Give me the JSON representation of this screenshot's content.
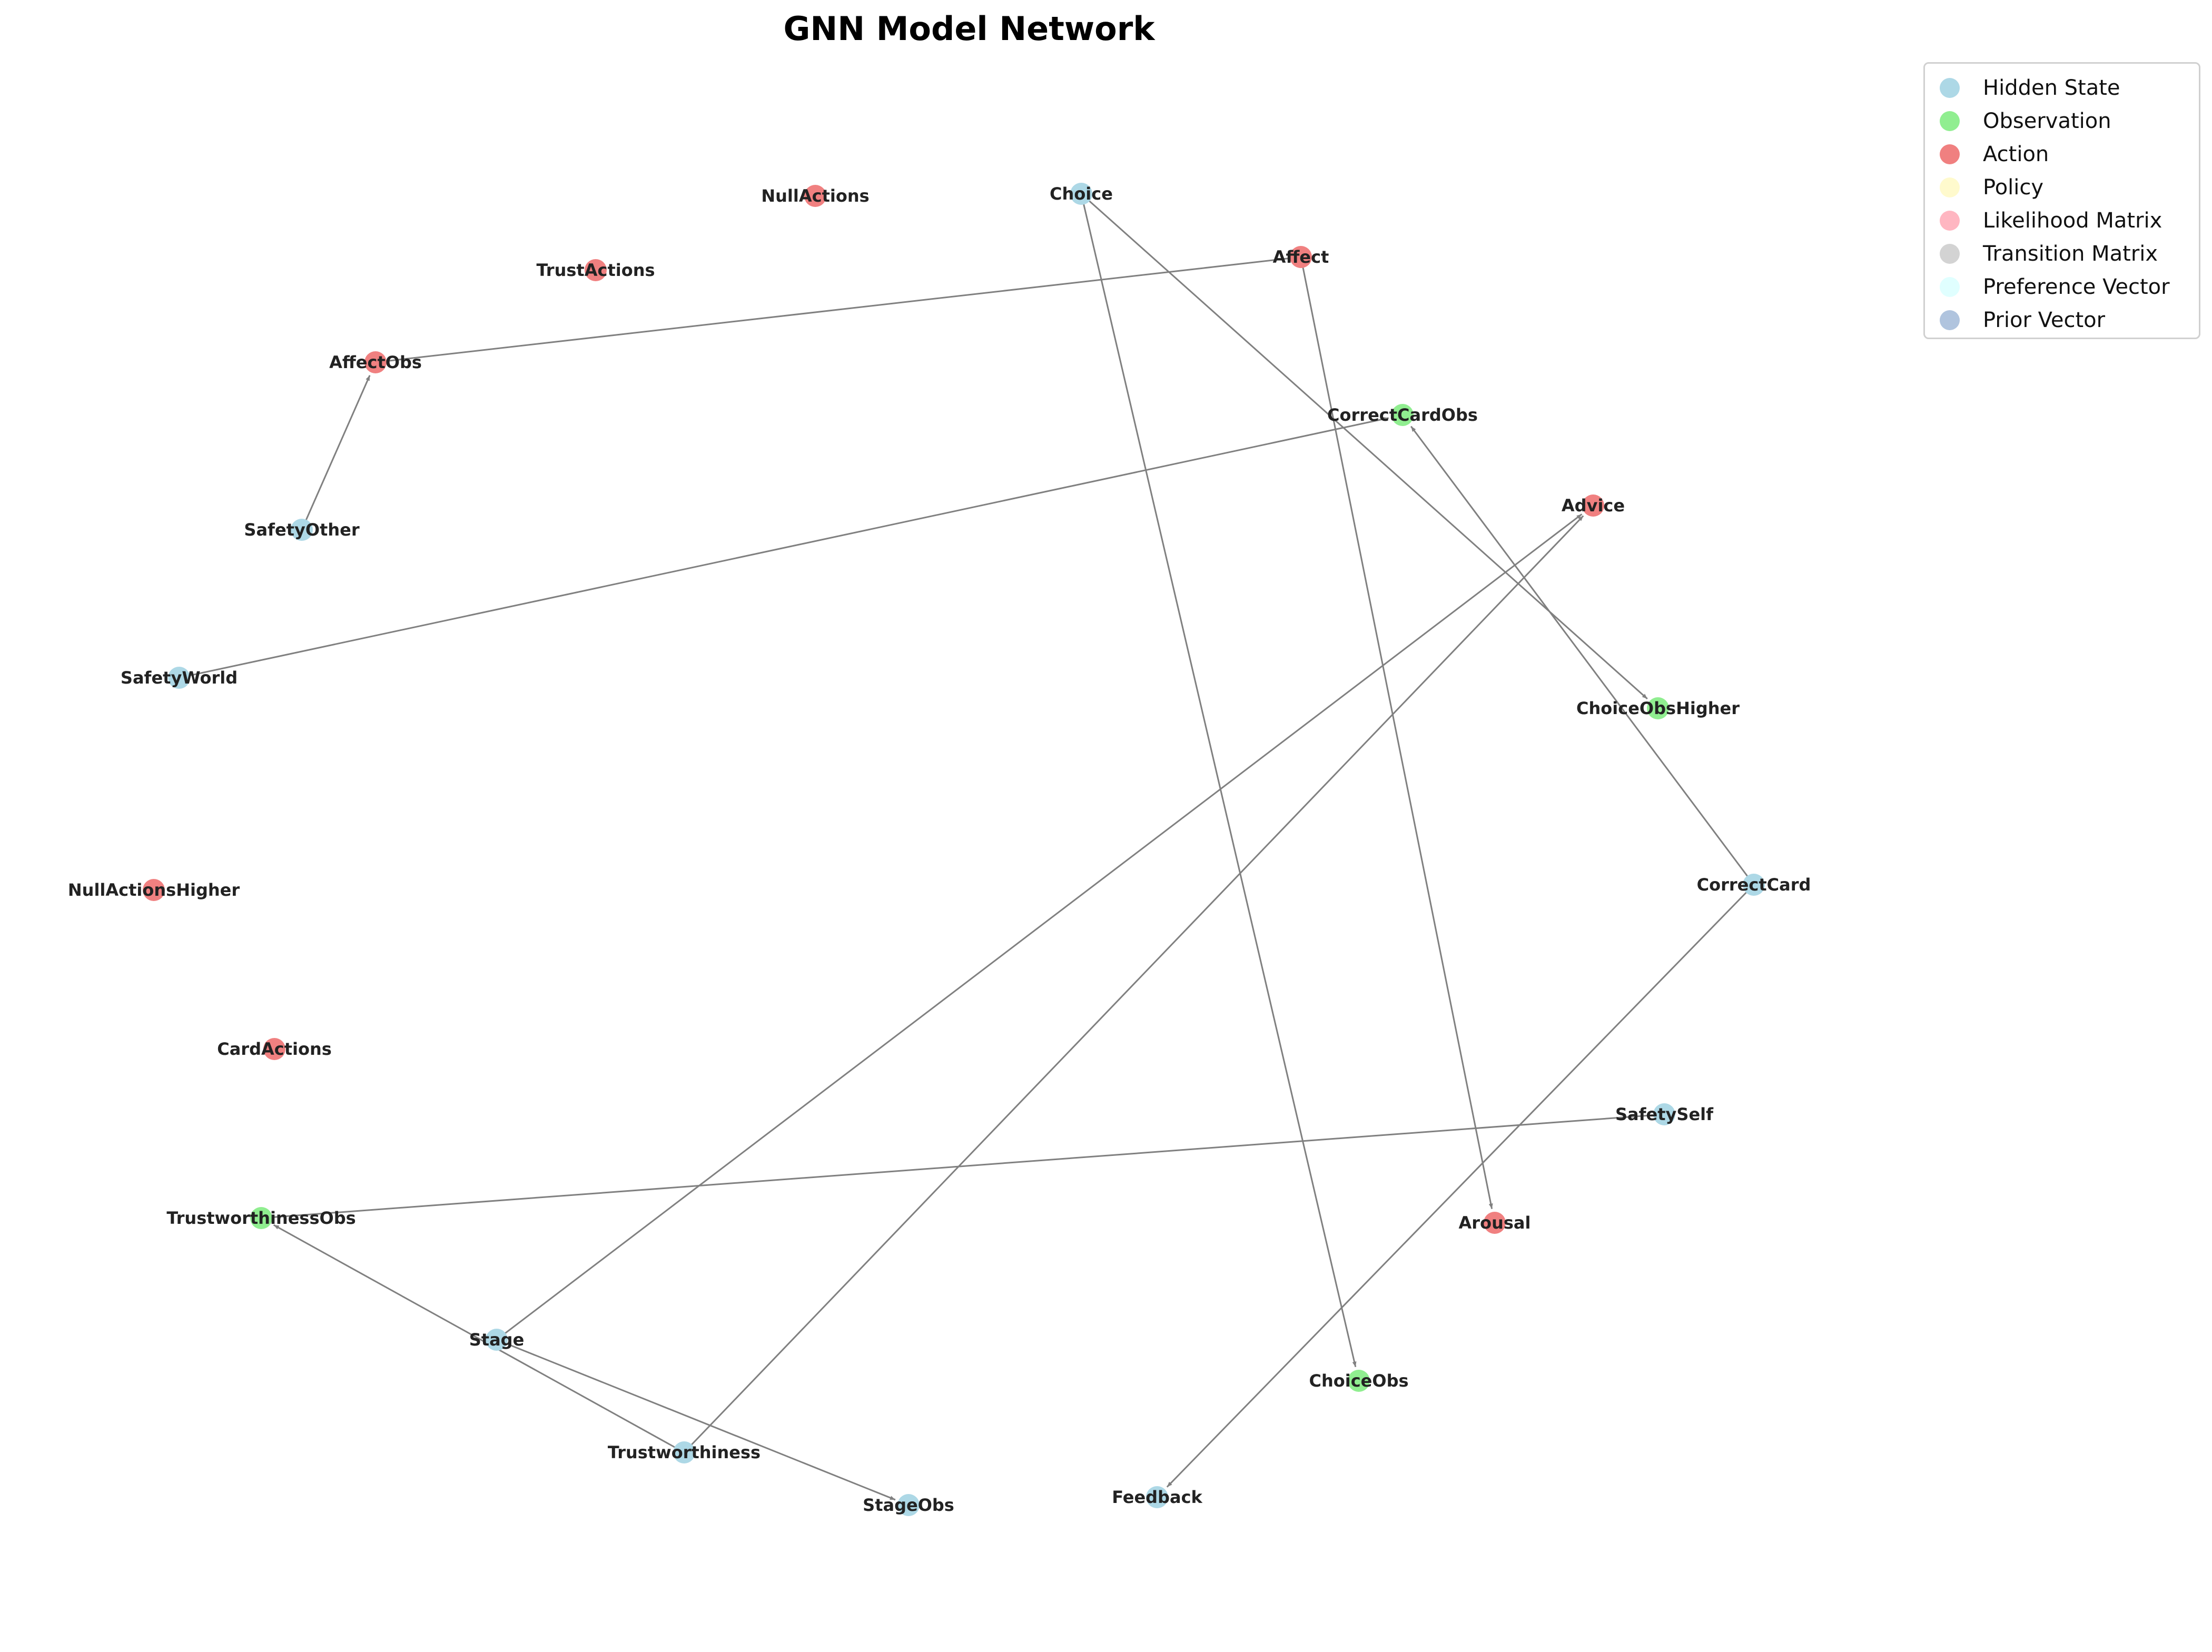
{
  "title": "GNN Model Network",
  "legend": [
    {
      "label": "Hidden State",
      "color": "#add8e6"
    },
    {
      "label": "Observation",
      "color": "#90ee90"
    },
    {
      "label": "Action",
      "color": "#f08080"
    },
    {
      "label": "Policy",
      "color": "#fffacd"
    },
    {
      "label": "Likelihood Matrix",
      "color": "#ffb6c1"
    },
    {
      "label": "Transition Matrix",
      "color": "#d3d3d3"
    },
    {
      "label": "Preference Vector",
      "color": "#e0ffff"
    },
    {
      "label": "Prior Vector",
      "color": "#b0c4de"
    }
  ],
  "nodes": [
    {
      "id": "NullActions",
      "type": "Action"
    },
    {
      "id": "Choice",
      "type": "Hidden State"
    },
    {
      "id": "TrustActions",
      "type": "Action"
    },
    {
      "id": "Affect",
      "type": "Action"
    },
    {
      "id": "AffectObs",
      "type": "Action"
    },
    {
      "id": "CorrectCardObs",
      "type": "Observation"
    },
    {
      "id": "Advice",
      "type": "Action"
    },
    {
      "id": "SafetyOther",
      "type": "Hidden State"
    },
    {
      "id": "SafetyWorld",
      "type": "Hidden State"
    },
    {
      "id": "ChoiceObsHigher",
      "type": "Observation"
    },
    {
      "id": "NullActionsHigher",
      "type": "Action"
    },
    {
      "id": "CorrectCard",
      "type": "Hidden State"
    },
    {
      "id": "CardActions",
      "type": "Action"
    },
    {
      "id": "SafetySelf",
      "type": "Hidden State"
    },
    {
      "id": "TrustworthinessObs",
      "type": "Observation"
    },
    {
      "id": "Arousal",
      "type": "Action"
    },
    {
      "id": "Stage",
      "type": "Hidden State"
    },
    {
      "id": "ChoiceObs",
      "type": "Observation"
    },
    {
      "id": "Trustworthiness",
      "type": "Hidden State"
    },
    {
      "id": "StageObs",
      "type": "Hidden State"
    },
    {
      "id": "Feedback",
      "type": "Hidden State"
    }
  ],
  "edges": [
    {
      "from": "Affect",
      "to": "AffectObs",
      "arrow": false
    },
    {
      "from": "SafetyOther",
      "to": "AffectObs",
      "arrow": true
    },
    {
      "from": "SafetyWorld",
      "to": "CorrectCardObs",
      "arrow": true
    },
    {
      "from": "Choice",
      "to": "ChoiceObsHigher",
      "arrow": true
    },
    {
      "from": "Choice",
      "to": "ChoiceObs",
      "arrow": true
    },
    {
      "from": "Affect",
      "to": "Arousal",
      "arrow": true
    },
    {
      "from": "CorrectCard",
      "to": "CorrectCardObs",
      "arrow": true
    },
    {
      "from": "CorrectCard",
      "to": "Feedback",
      "arrow": true
    },
    {
      "from": "Stage",
      "to": "Advice",
      "arrow": true
    },
    {
      "from": "Trustworthiness",
      "to": "Advice",
      "arrow": true
    },
    {
      "from": "SafetySelf",
      "to": "TrustworthinessObs",
      "arrow": false
    },
    {
      "from": "Trustworthiness",
      "to": "TrustworthinessObs",
      "arrow": true
    },
    {
      "from": "Stage",
      "to": "StageObs",
      "arrow": true
    }
  ]
}
